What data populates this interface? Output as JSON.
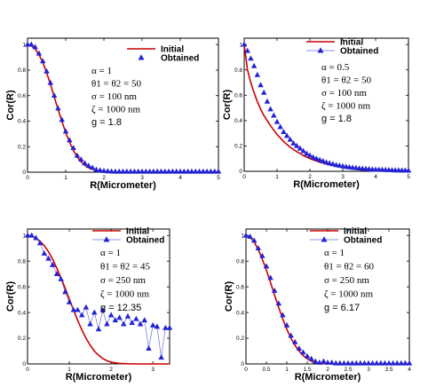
{
  "colors": {
    "initial": "#cc0000",
    "obtained": "#2323d6",
    "axis": "#000000"
  },
  "chart_data": [
    {
      "type": "line",
      "xlabel": "R(Micrometer)",
      "ylabel": "Cor(R)",
      "xlim": [
        0,
        5
      ],
      "ylim": [
        0,
        1.05
      ],
      "xticks": [
        "0",
        "1",
        "2",
        "3",
        "4",
        "5"
      ],
      "yticks": [
        "0",
        "0.2",
        "0.4",
        "0.6",
        "0.8",
        "1"
      ],
      "legend": [
        "Initial",
        "Obtained"
      ],
      "legend_style": "dot",
      "params": [
        "α = 1",
        "θ1 = θ2 = 50",
        "σ = 100   nm",
        "ζ = 1000 nm",
        "g = 1.8"
      ],
      "series": [
        {
          "name": "Initial",
          "style": "line",
          "x": [
            0,
            0.1,
            0.2,
            0.3,
            0.4,
            0.5,
            0.6,
            0.7,
            0.8,
            0.9,
            1.0,
            1.1,
            1.2,
            1.3,
            1.4,
            1.5,
            1.6,
            1.8,
            2.0,
            2.2,
            2.5,
            3,
            3.5,
            4,
            4.5,
            5
          ],
          "y": [
            1,
            0.99,
            0.965,
            0.92,
            0.86,
            0.78,
            0.69,
            0.59,
            0.49,
            0.4,
            0.31,
            0.235,
            0.17,
            0.12,
            0.082,
            0.055,
            0.035,
            0.014,
            0.005,
            0.002,
            0,
            0,
            0,
            0,
            0,
            0
          ]
        },
        {
          "name": "Obtained",
          "style": "markers",
          "x": [
            0,
            0.1,
            0.2,
            0.3,
            0.4,
            0.5,
            0.6,
            0.7,
            0.8,
            0.9,
            1.0,
            1.1,
            1.2,
            1.3,
            1.4,
            1.5,
            1.6,
            1.7,
            1.8,
            1.9,
            2.0,
            2.1,
            2.2,
            2.3,
            2.4,
            2.5,
            2.6,
            2.7,
            2.8,
            2.9,
            3.0,
            3.1,
            3.2,
            3.3,
            3.4,
            3.5,
            3.6,
            3.7,
            3.8,
            3.9,
            4.0,
            4.1,
            4.2,
            4.3,
            4.4,
            4.5,
            4.6,
            4.7,
            4.8,
            4.9,
            5.0
          ],
          "y": [
            1,
            1,
            0.98,
            0.93,
            0.87,
            0.79,
            0.7,
            0.6,
            0.5,
            0.41,
            0.32,
            0.25,
            0.19,
            0.13,
            0.1,
            0.07,
            0.05,
            0.035,
            0.02,
            0.015,
            0.01,
            0.008,
            0.006,
            0.005,
            0.005,
            0.005,
            0.005,
            0.005,
            0.005,
            0.005,
            0.005,
            0.005,
            0.005,
            0.005,
            0.005,
            0.005,
            0.005,
            0.005,
            0.005,
            0.005,
            0.005,
            0.005,
            0.005,
            0.005,
            0.005,
            0.005,
            0.005,
            0.005,
            0.005,
            0.005,
            0.005
          ]
        }
      ]
    },
    {
      "type": "line",
      "xlabel": "R(Micrometer)",
      "ylabel": "Cor(R)",
      "xlim": [
        0,
        5
      ],
      "ylim": [
        0,
        1.05
      ],
      "xticks": [
        "0",
        "1",
        "2",
        "3",
        "4",
        "5"
      ],
      "yticks": [
        "0",
        "0.2",
        "0.4",
        "0.6",
        "0.8",
        "1"
      ],
      "legend": [
        "Initial",
        "Obtained"
      ],
      "legend_style": "line",
      "params": [
        "α = 0.5",
        "θ1 = θ2 = 50",
        "σ = 100   nm",
        "ζ = 1000 nm",
        "g = 1.8"
      ],
      "series": [
        {
          "name": "Initial",
          "style": "line",
          "x": [
            0,
            0.1,
            0.2,
            0.3,
            0.4,
            0.5,
            0.6,
            0.8,
            1.0,
            1.2,
            1.4,
            1.6,
            1.8,
            2.0,
            2.3,
            2.6,
            3.0,
            3.5,
            4,
            4.5,
            5
          ],
          "y": [
            1,
            0.8,
            0.7,
            0.62,
            0.55,
            0.49,
            0.44,
            0.36,
            0.29,
            0.235,
            0.19,
            0.155,
            0.125,
            0.1,
            0.072,
            0.052,
            0.035,
            0.02,
            0.012,
            0.007,
            0.004
          ]
        },
        {
          "name": "Obtained",
          "style": "markers",
          "x": [
            0,
            0.1,
            0.2,
            0.3,
            0.4,
            0.5,
            0.6,
            0.7,
            0.8,
            0.9,
            1.0,
            1.1,
            1.2,
            1.3,
            1.4,
            1.5,
            1.6,
            1.7,
            1.8,
            1.9,
            2.0,
            2.1,
            2.2,
            2.3,
            2.4,
            2.5,
            2.6,
            2.7,
            2.8,
            2.9,
            3.0,
            3.1,
            3.2,
            3.3,
            3.4,
            3.5,
            3.6,
            3.7,
            3.8,
            3.9,
            4.0,
            4.1,
            4.2,
            4.3,
            4.4,
            4.5,
            4.6,
            4.7,
            4.8,
            4.9,
            5.0
          ],
          "y": [
            1,
            0.95,
            0.89,
            0.83,
            0.76,
            0.68,
            0.62,
            0.55,
            0.49,
            0.44,
            0.39,
            0.35,
            0.31,
            0.28,
            0.25,
            0.22,
            0.2,
            0.18,
            0.16,
            0.14,
            0.125,
            0.11,
            0.1,
            0.09,
            0.08,
            0.07,
            0.063,
            0.057,
            0.05,
            0.045,
            0.04,
            0.036,
            0.032,
            0.029,
            0.026,
            0.023,
            0.021,
            0.019,
            0.017,
            0.015,
            0.014,
            0.013,
            0.012,
            0.011,
            0.01,
            0.009,
            0.008,
            0.008,
            0.007,
            0.007,
            0.006
          ]
        }
      ]
    },
    {
      "type": "line",
      "xlabel": "R(Micrometer)",
      "ylabel": "Cor(R)",
      "xlim": [
        0,
        3.4
      ],
      "ylim": [
        0,
        1.05
      ],
      "xticks": [
        "0",
        "1",
        "2",
        "3"
      ],
      "yticks": [
        "0",
        "0.2",
        "0.4",
        "0.6",
        "0.8",
        "1"
      ],
      "legend": [
        "Initial",
        "Obtained"
      ],
      "legend_style": "line",
      "params": [
        "α = 1",
        "θ1 = θ2 = 45",
        "σ = 250   nm",
        "ζ = 1000 nm",
        "g = 12.35"
      ],
      "series": [
        {
          "name": "Initial",
          "style": "line",
          "x": [
            0,
            0.1,
            0.2,
            0.3,
            0.4,
            0.5,
            0.6,
            0.7,
            0.8,
            0.9,
            1.0,
            1.1,
            1.2,
            1.3,
            1.4,
            1.5,
            1.6,
            1.7,
            1.8,
            1.9,
            2.0,
            2.1,
            2.2,
            2.4,
            2.6,
            3.0,
            3.4
          ],
          "y": [
            1,
            0.995,
            0.98,
            0.955,
            0.92,
            0.875,
            0.815,
            0.745,
            0.67,
            0.59,
            0.505,
            0.42,
            0.34,
            0.265,
            0.2,
            0.145,
            0.1,
            0.068,
            0.042,
            0.025,
            0.014,
            0.008,
            0.004,
            0.001,
            0,
            0,
            0
          ]
        },
        {
          "name": "Obtained",
          "style": "markers-line",
          "x": [
            0,
            0.1,
            0.2,
            0.3,
            0.4,
            0.5,
            0.6,
            0.7,
            0.8,
            0.9,
            1.0,
            1.1,
            1.2,
            1.3,
            1.4,
            1.5,
            1.6,
            1.7,
            1.8,
            1.9,
            2.0,
            2.1,
            2.2,
            2.3,
            2.4,
            2.5,
            2.6,
            2.7,
            2.8,
            2.9,
            3.0,
            3.1,
            3.2,
            3.3,
            3.4
          ],
          "y": [
            1,
            1,
            0.98,
            0.94,
            0.86,
            0.82,
            0.77,
            0.7,
            0.66,
            0.56,
            0.48,
            0.42,
            0.42,
            0.38,
            0.44,
            0.31,
            0.4,
            0.27,
            0.42,
            0.31,
            0.38,
            0.34,
            0.36,
            0.31,
            0.37,
            0.32,
            0.35,
            0.31,
            0.34,
            0.12,
            0.3,
            0.29,
            0.05,
            0.28,
            0.28
          ]
        }
      ]
    },
    {
      "type": "line",
      "xlabel": "R(Micrometer)",
      "ylabel": "Cor(R)",
      "xlim": [
        0,
        4
      ],
      "ylim": [
        0,
        1.05
      ],
      "xticks": [
        "0",
        "0.5",
        "1",
        "1.5",
        "2",
        "2.5",
        "3",
        "3.5",
        "4"
      ],
      "yticks": [
        "0",
        "0.2",
        "0.4",
        "0.6",
        "0.8",
        "1"
      ],
      "legend": [
        "Initial",
        "Obtained"
      ],
      "legend_style": "line",
      "params": [
        "α = 1",
        "θ1 = θ2 = 60",
        "σ = 250   nm",
        "ζ = 1000 nm",
        "g = 6.17"
      ],
      "series": [
        {
          "name": "Initial",
          "style": "line",
          "x": [
            0,
            0.1,
            0.2,
            0.3,
            0.4,
            0.5,
            0.6,
            0.7,
            0.8,
            0.9,
            1.0,
            1.1,
            1.2,
            1.3,
            1.4,
            1.5,
            1.6,
            1.7,
            1.8,
            2.0,
            2.5,
            3,
            3.5,
            4
          ],
          "y": [
            1,
            0.985,
            0.95,
            0.89,
            0.815,
            0.73,
            0.635,
            0.535,
            0.44,
            0.35,
            0.27,
            0.2,
            0.145,
            0.1,
            0.065,
            0.04,
            0.022,
            0.01,
            0.004,
            0,
            0,
            0,
            0,
            0
          ]
        },
        {
          "name": "Obtained",
          "style": "markers",
          "x": [
            0,
            0.1,
            0.2,
            0.3,
            0.4,
            0.5,
            0.6,
            0.7,
            0.8,
            0.9,
            1.0,
            1.1,
            1.2,
            1.3,
            1.4,
            1.5,
            1.6,
            1.7,
            1.8,
            1.9,
            2.0,
            2.1,
            2.2,
            2.3,
            2.4,
            2.5,
            2.6,
            2.7,
            2.8,
            2.9,
            3.0,
            3.1,
            3.2,
            3.3,
            3.4,
            3.5,
            3.6,
            3.7,
            3.8,
            3.9,
            4.0
          ],
          "y": [
            1,
            0.99,
            0.96,
            0.9,
            0.84,
            0.76,
            0.67,
            0.57,
            0.47,
            0.38,
            0.3,
            0.22,
            0.17,
            0.12,
            0.09,
            0.06,
            0.04,
            0.02,
            0.01,
            0.02,
            0.01,
            0.01,
            0.005,
            0.005,
            0.005,
            0.005,
            0.005,
            0.005,
            0.005,
            0.005,
            0.005,
            0.005,
            0.005,
            0.005,
            0.005,
            0.005,
            0.005,
            0.005,
            0.005,
            0.005,
            0.005
          ]
        }
      ]
    }
  ]
}
